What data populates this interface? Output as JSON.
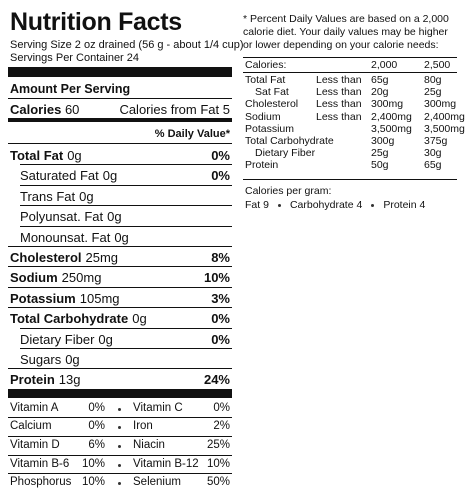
{
  "label": {
    "title": "Nutrition Facts",
    "serving_size": "Serving Size 2 oz drained (56 g - about 1/4 cup)",
    "servings": "Servings Per Container 24",
    "amount_header": "Amount Per Serving",
    "calories": {
      "label": "Calories",
      "value": "60",
      "fat_label": "Calories from Fat",
      "fat_value": "5"
    },
    "dv_header": "% Daily Value*",
    "nutrients": [
      {
        "name": "Total Fat",
        "amount": "0g",
        "dv": "0%",
        "indent": false
      },
      {
        "name": "Saturated Fat",
        "amount": "0g",
        "dv": "0%",
        "indent": true
      },
      {
        "name": "Trans Fat",
        "amount": "0g",
        "dv": null,
        "indent": true
      },
      {
        "name": "Polyunsat. Fat",
        "amount": "0g",
        "dv": null,
        "indent": true
      },
      {
        "name": "Monounsat. Fat",
        "amount": "0g",
        "dv": null,
        "indent": true
      },
      {
        "name": "Cholesterol",
        "amount": "25mg",
        "dv": "8%",
        "indent": false
      },
      {
        "name": "Sodium",
        "amount": "250mg",
        "dv": "10%",
        "indent": false
      },
      {
        "name": "Potassium",
        "amount": "105mg",
        "dv": "3%",
        "indent": false
      },
      {
        "name": "Total Carbohydrate",
        "amount": "0g",
        "dv": "0%",
        "indent": false
      },
      {
        "name": "Dietary Fiber",
        "amount": "0g",
        "dv": "0%",
        "indent": true
      },
      {
        "name": "Sugars",
        "amount": "0g",
        "dv": null,
        "indent": true
      },
      {
        "name": "Protein",
        "amount": "13g",
        "dv": "24%",
        "indent": false
      }
    ],
    "vitamins": [
      [
        "Vitamin A",
        "0%",
        "Vitamin C",
        "0%"
      ],
      [
        "Calcium",
        "0%",
        "Iron",
        "2%"
      ],
      [
        "Vitamin D",
        "6%",
        "Niacin",
        "25%"
      ],
      [
        "Vitamin B-6",
        "10%",
        "Vitamin B-12",
        "10%"
      ],
      [
        "Phosphorus",
        "10%",
        "Selenium",
        "50%"
      ]
    ]
  },
  "footnote": {
    "text": "* Percent Daily Values are based on a 2,000 calorie diet.  Your daily values may be higher or lower depending on your calorie needs:",
    "header": [
      "Calories:",
      "2,000",
      "2,500"
    ],
    "rows": [
      {
        "name": "Total Fat",
        "limit": "Less than",
        "v1": "65g",
        "v2": "80g",
        "indent": false
      },
      {
        "name": "Sat Fat",
        "limit": "Less than",
        "v1": "20g",
        "v2": "25g",
        "indent": true
      },
      {
        "name": "Cholesterol",
        "limit": "Less than",
        "v1": "300mg",
        "v2": "300mg",
        "indent": false
      },
      {
        "name": "Sodium",
        "limit": "Less than",
        "v1": "2,400mg",
        "v2": "2,400mg",
        "indent": false
      },
      {
        "name": "Potassium",
        "limit": null,
        "v1": "3,500mg",
        "v2": "3,500mg",
        "indent": false
      },
      {
        "name": "Total Carbohydrate",
        "limit": null,
        "v1": "300g",
        "v2": "375g",
        "indent": false
      },
      {
        "name": "Dietary Fiber",
        "limit": null,
        "v1": "25g",
        "v2": "30g",
        "indent": true
      },
      {
        "name": "Protein",
        "limit": null,
        "v1": "50g",
        "v2": "65g",
        "indent": false
      }
    ],
    "per_gram_title": "Calories per gram:",
    "per_gram": [
      "Fat 9",
      "Carbohydrate 4",
      "Protein 4"
    ]
  }
}
